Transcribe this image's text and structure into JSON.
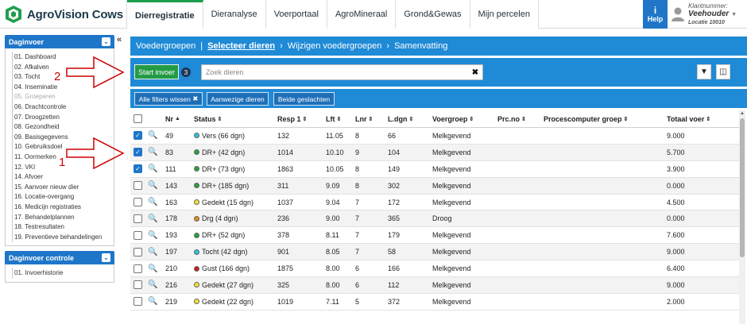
{
  "app": {
    "name": "AgroVision Cows"
  },
  "nav": {
    "tabs": [
      {
        "label": "Dierregistratie",
        "active": true
      },
      {
        "label": "Dieranalyse"
      },
      {
        "label": "Voerportaal"
      },
      {
        "label": "AgroMineraal"
      },
      {
        "label": "Grond&Gewas"
      },
      {
        "label": "Mijn percelen"
      }
    ],
    "help_icon": "i",
    "help_label": "Help"
  },
  "user": {
    "caption": "Klantnummer:",
    "name": "Veehouder",
    "location": "Locatie 10010"
  },
  "sidebar": {
    "panel1_title": "Daginvoer",
    "items": [
      "01. Dashboard",
      "02. Afkalven",
      "03. Tocht",
      "04. Inseminatie",
      "05. Groeperen",
      "06. Drachtcontrole",
      "07. Droogzetten",
      "08. Gezondheid",
      "09. Basisgegevens",
      "10. Gebruiksdoel",
      "11. Oormerken",
      "12. VKI",
      "14. Afvoer",
      "15. Aanvoer nieuw dier",
      "16. Locatie-overgang",
      "16. Medicijn registraties",
      "17. Behandelplannen",
      "18. Testresultaten",
      "19. Preventieve behandelingen"
    ],
    "panel2_title": "Daginvoer controle",
    "items2": [
      "01. Invoerhistorie"
    ],
    "collapse_icon": "«"
  },
  "breadcrumb": {
    "items": [
      "Voedergroepen",
      "Selecteer dieren",
      "Wijzigen voedergroepen",
      "Samenvatting"
    ],
    "first_sep": "|",
    "sep": "›"
  },
  "toolbar": {
    "start_label": "Start invoer",
    "selected_count": "3",
    "search_placeholder": "Zoek dieren",
    "clear_icon": "✖",
    "filter_icon": "▼",
    "columns_icon": "◫"
  },
  "filters": {
    "clear_all_label": "Alle filters wissen",
    "present_label": "Aanwezige dieren",
    "both_sexes_label": "Beide geslachten"
  },
  "table": {
    "columns": [
      "Nr",
      "Status",
      "Resp 1",
      "Lft",
      "Lnr",
      "L.dgn",
      "Voergroep",
      "Prc.no",
      "Procescomputer groep",
      "Totaal voer"
    ],
    "sort_asc_icon": "▲",
    "sort_icon": "⇕",
    "search_icon": "🔍",
    "check_icon": "✓",
    "rows": [
      {
        "checked": true,
        "nr": "49",
        "status": "Vers (66 dgn)",
        "status_color": "#27c4d8",
        "resp": "132",
        "lft": "11.05",
        "lnr": "8",
        "ldgn": "66",
        "voergroep": "Melkgevend",
        "prc": "",
        "pcg": "",
        "voer": "9.000"
      },
      {
        "checked": true,
        "nr": "83",
        "status": "DR+ (42 dgn)",
        "status_color": "#23a23a",
        "resp": "1014",
        "lft": "10.10",
        "lnr": "9",
        "ldgn": "104",
        "voergroep": "Melkgevend",
        "prc": "",
        "pcg": "",
        "voer": "5.700"
      },
      {
        "checked": true,
        "nr": "111",
        "status": "DR+ (73 dgn)",
        "status_color": "#23a23a",
        "resp": "1863",
        "lft": "10.05",
        "lnr": "8",
        "ldgn": "149",
        "voergroep": "Melkgevend",
        "prc": "",
        "pcg": "",
        "voer": "3.900"
      },
      {
        "checked": false,
        "nr": "143",
        "status": "DR+ (185 dgn)",
        "status_color": "#23a23a",
        "resp": "311",
        "lft": "9.09",
        "lnr": "8",
        "ldgn": "302",
        "voergroep": "Melkgevend",
        "prc": "",
        "pcg": "",
        "voer": "0.000"
      },
      {
        "checked": false,
        "nr": "163",
        "status": "Gedekt (15 dgn)",
        "status_color": "#f3e22a",
        "resp": "1037",
        "lft": "9.04",
        "lnr": "7",
        "ldgn": "172",
        "voergroep": "Melkgevend",
        "prc": "",
        "pcg": "",
        "voer": "4.500"
      },
      {
        "checked": false,
        "nr": "178",
        "status": "Drg (4 dgn)",
        "status_color": "#e08a1e",
        "resp": "236",
        "lft": "9.00",
        "lnr": "7",
        "ldgn": "365",
        "voergroep": "Droog",
        "prc": "",
        "pcg": "",
        "voer": "0.000"
      },
      {
        "checked": false,
        "nr": "193",
        "status": "DR+ (52 dgn)",
        "status_color": "#23a23a",
        "resp": "378",
        "lft": "8.11",
        "lnr": "7",
        "ldgn": "179",
        "voergroep": "Melkgevend",
        "prc": "",
        "pcg": "",
        "voer": "7.600"
      },
      {
        "checked": false,
        "nr": "197",
        "status": "Tocht (42 dgn)",
        "status_color": "#27c4d8",
        "resp": "901",
        "lft": "8.05",
        "lnr": "7",
        "ldgn": "58",
        "voergroep": "Melkgevend",
        "prc": "",
        "pcg": "",
        "voer": "9.000"
      },
      {
        "checked": false,
        "nr": "210",
        "status": "Gust (166 dgn)",
        "status_color": "#cc1d1d",
        "resp": "1875",
        "lft": "8.00",
        "lnr": "6",
        "ldgn": "166",
        "voergroep": "Melkgevend",
        "prc": "",
        "pcg": "",
        "voer": "6.400"
      },
      {
        "checked": false,
        "nr": "216",
        "status": "Gedekt (27 dgn)",
        "status_color": "#f3e22a",
        "resp": "325",
        "lft": "8.00",
        "lnr": "6",
        "ldgn": "112",
        "voergroep": "Melkgevend",
        "prc": "",
        "pcg": "",
        "voer": "9.000"
      },
      {
        "checked": false,
        "nr": "219",
        "status": "Gedekt (22 dgn)",
        "status_color": "#f3e22a",
        "resp": "1019",
        "lft": "7.11",
        "lnr": "5",
        "ldgn": "372",
        "voergroep": "Melkgevend",
        "prc": "",
        "pcg": "",
        "voer": "2.000"
      }
    ]
  },
  "annotations": {
    "label1": "1",
    "label2": "2",
    "color": "#cc0000"
  }
}
